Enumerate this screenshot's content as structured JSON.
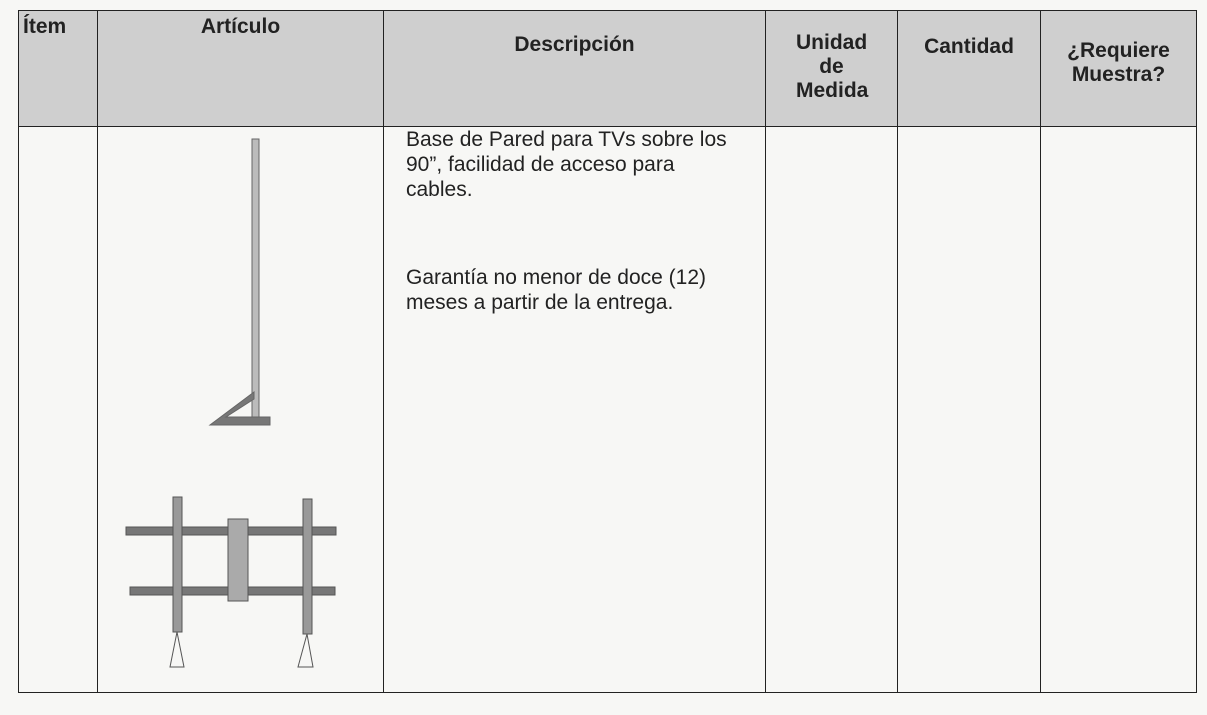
{
  "table": {
    "headers": [
      "Ítem",
      "Artículo",
      "Descripción",
      "Unidad de Medida",
      "Cantidad",
      "¿Requiere Muestra?"
    ],
    "rows": [
      {
        "description": [
          "Base de Pared para TVs sobre los 90”, facilidad de acceso para cables.",
          "Garantía no menor de doce (12) meses a partir de la entrega."
        ]
      }
    ]
  }
}
